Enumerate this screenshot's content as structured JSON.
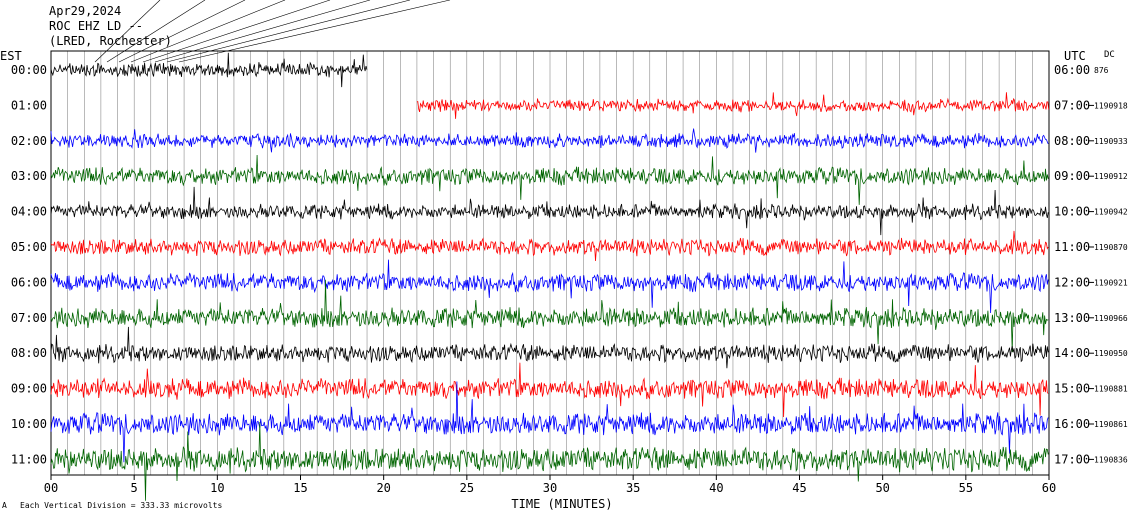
{
  "header": {
    "date": "Apr29,2024",
    "channel": "ROC EHZ LD --",
    "station": "(LRED, Rochester)"
  },
  "footer": {
    "scale_note": "Each Vertical Division = 333.33 microvolts",
    "corner_mark": "A"
  },
  "chart_data": {
    "type": "line",
    "title": "",
    "xlabel": "TIME (MINUTES)",
    "left_axis_label": "EST",
    "right_axis_label": "UTC",
    "dc_label": "DC",
    "xlim": [
      0,
      60
    ],
    "x_ticks": [
      0,
      5,
      10,
      15,
      20,
      25,
      30,
      35,
      40,
      45,
      50,
      55,
      60
    ],
    "x_tick_labels": [
      "00",
      "5",
      "10",
      "15",
      "20",
      "25",
      "30",
      "35",
      "40",
      "45",
      "50",
      "55",
      "60"
    ],
    "grid": true,
    "rows": [
      {
        "est": "00:00",
        "utc": "06:00",
        "dc": "876",
        "color": "#000000",
        "amp": 0.55,
        "start": 0,
        "end": 19
      },
      {
        "est": "01:00",
        "utc": "07:00",
        "dc": "-1190918",
        "color": "#ff0000",
        "amp": 0.45,
        "start": 22,
        "end": 60
      },
      {
        "est": "02:00",
        "utc": "08:00",
        "dc": "-1190933",
        "color": "#0000ff",
        "amp": 0.55,
        "start": 0,
        "end": 60
      },
      {
        "est": "03:00",
        "utc": "09:00",
        "dc": "-1190912",
        "color": "#006400",
        "amp": 0.75,
        "start": 0,
        "end": 60
      },
      {
        "est": "04:00",
        "utc": "10:00",
        "dc": "-1190942",
        "color": "#000000",
        "amp": 0.6,
        "start": 0,
        "end": 60
      },
      {
        "est": "05:00",
        "utc": "11:00",
        "dc": "-1190870",
        "color": "#ff0000",
        "amp": 0.7,
        "start": 0,
        "end": 60
      },
      {
        "est": "06:00",
        "utc": "12:00",
        "dc": "-1190921",
        "color": "#0000ff",
        "amp": 0.8,
        "start": 0,
        "end": 60
      },
      {
        "est": "07:00",
        "utc": "13:00",
        "dc": "-1190966",
        "color": "#006400",
        "amp": 0.9,
        "start": 0,
        "end": 60
      },
      {
        "est": "08:00",
        "utc": "14:00",
        "dc": "-1190950",
        "color": "#000000",
        "amp": 0.75,
        "start": 0,
        "end": 60
      },
      {
        "est": "09:00",
        "utc": "15:00",
        "dc": "-1190881",
        "color": "#ff0000",
        "amp": 0.9,
        "start": 0,
        "end": 60
      },
      {
        "est": "10:00",
        "utc": "16:00",
        "dc": "-1190861",
        "color": "#0000ff",
        "amp": 1.0,
        "start": 0,
        "end": 60
      },
      {
        "est": "11:00",
        "utc": "17:00",
        "dc": "-1190836",
        "color": "#006400",
        "amp": 1.1,
        "start": 0,
        "end": 60
      }
    ]
  }
}
